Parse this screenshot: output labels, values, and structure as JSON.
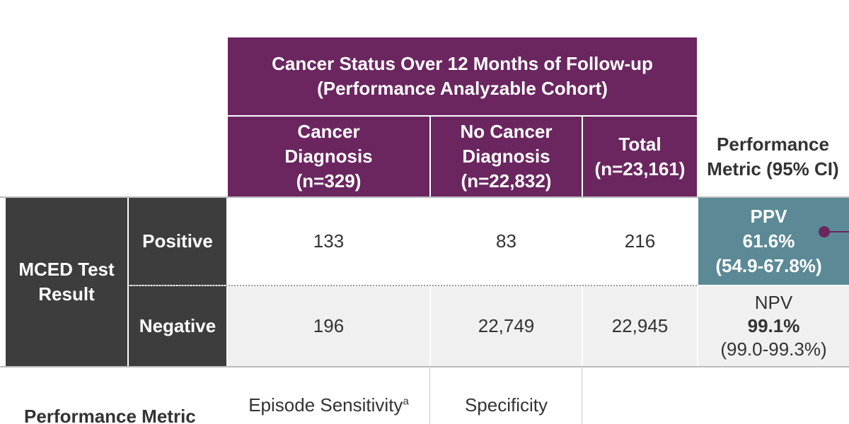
{
  "header": {
    "title_lines": [
      "Cancer Status Over 12 Months of Follow-up",
      "(Performance Analyzable Cohort)"
    ]
  },
  "columns": [
    {
      "lines": [
        "Cancer",
        "Diagnosis",
        "(n=329)"
      ]
    },
    {
      "lines": [
        "No Cancer",
        "Diagnosis",
        "(n=22,832)"
      ]
    },
    {
      "lines": [
        "Total",
        "(n=23,161)"
      ]
    }
  ],
  "metric_header": [
    "Performance",
    "Metric (95% CI)"
  ],
  "row_group": [
    "MCED Test",
    "Result"
  ],
  "rows": [
    {
      "label": "Positive",
      "cells": [
        "133",
        "83",
        "216"
      ],
      "metric": {
        "name": "PPV",
        "value": "61.6%",
        "ci": "(54.9-67.8%)"
      }
    },
    {
      "label": "Negative",
      "cells": [
        "196",
        "22,749",
        "22,945"
      ],
      "metric": {
        "name": "NPV",
        "value": "99.1%",
        "ci": "(99.0-99.3%)"
      }
    }
  ],
  "footer": {
    "label": "Performance Metric",
    "metrics": [
      {
        "name": "Episode Sensitivity",
        "superscript": "a"
      },
      {
        "name": "Specificity"
      }
    ]
  }
}
